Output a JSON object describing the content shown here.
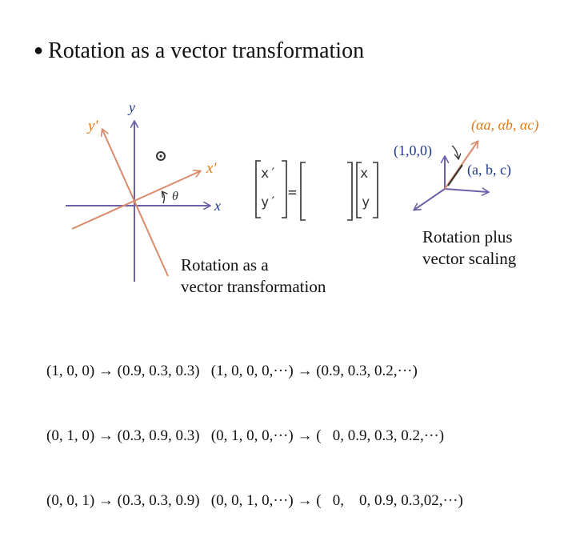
{
  "title": "Rotation as a vector transformation",
  "colors": {
    "axis": "#6f5fa8",
    "rotated_axis": "#d98a6a",
    "label_blue": "#1f3a8a",
    "label_orange": "#e07a10",
    "pencil": "#333333"
  },
  "rotation_diagram": {
    "x_label": "x",
    "y_label": "y",
    "x_prime_label": "x′",
    "y_prime_label": "y′",
    "angle_label": "θ"
  },
  "matrix_equation": {
    "left_top": "x′",
    "left_bottom": "y′",
    "equals": "=",
    "right_top": "x",
    "right_bottom": "y"
  },
  "scaling_diagram": {
    "unit_label": "(1,0,0)",
    "vector_label": "(a, b, c)",
    "scaled_label": "(αa, αb, αc)"
  },
  "captions": {
    "rotation": [
      "Rotation as a",
      "vector transformation"
    ],
    "scaling": [
      "Rotation plus",
      "vector scaling"
    ]
  },
  "mappings": [
    "(1, 0, 0) → (0.9, 0.3, 0.3)   (1, 0, 0, 0,···) → (0.9, 0.3, 0.2,···)",
    "(0, 1, 0) → (0.3, 0.9, 0.3)   (0, 1, 0, 0,···) → (   0, 0.9, 0.3, 0.2,···)",
    "(0, 0, 1) → (0.3, 0.3, 0.9)   (0, 0, 1, 0,···) → (   0,    0, 0.9, 0.3,02,···)"
  ]
}
